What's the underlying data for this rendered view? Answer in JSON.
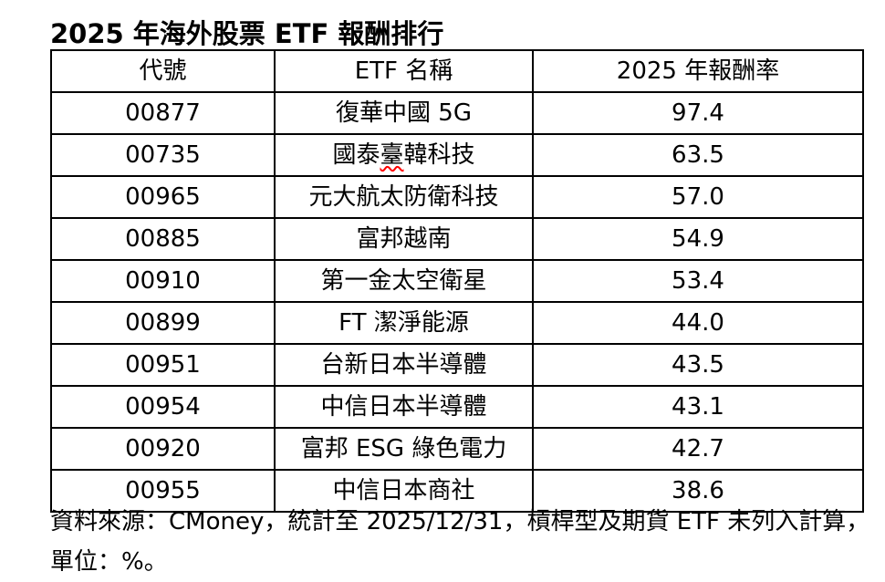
{
  "title": "2025 年海外股票 ETF 報酬排行",
  "table": {
    "columns": [
      "代號",
      "ETF 名稱",
      "2025 年報酬率"
    ],
    "rows": [
      {
        "code": "00877",
        "name_parts": [
          {
            "text": "復華中國 5G"
          }
        ],
        "return_rate": "97.4"
      },
      {
        "code": "00735",
        "name_parts": [
          {
            "text": "國泰"
          },
          {
            "text": "臺",
            "squiggle": true
          },
          {
            "text": "韓科技"
          }
        ],
        "return_rate": "63.5"
      },
      {
        "code": "00965",
        "name_parts": [
          {
            "text": "元大航太防衛科技"
          }
        ],
        "return_rate": "57.0"
      },
      {
        "code": "00885",
        "name_parts": [
          {
            "text": "富邦越南"
          }
        ],
        "return_rate": "54.9"
      },
      {
        "code": "00910",
        "name_parts": [
          {
            "text": "第一金太空衛星"
          }
        ],
        "return_rate": "53.4"
      },
      {
        "code": "00899",
        "name_parts": [
          {
            "text": "FT 潔淨能源"
          }
        ],
        "return_rate": "44.0"
      },
      {
        "code": "00951",
        "name_parts": [
          {
            "text": "台新日本半導體"
          }
        ],
        "return_rate": "43.5"
      },
      {
        "code": "00954",
        "name_parts": [
          {
            "text": "中信日本半導體"
          }
        ],
        "return_rate": "43.1"
      },
      {
        "code": "00920",
        "name_parts": [
          {
            "text": "富邦 ESG 綠色電力"
          }
        ],
        "return_rate": "42.7"
      },
      {
        "code": "00955",
        "name_parts": [
          {
            "text": "中信日本商社"
          }
        ],
        "return_rate": "38.6"
      }
    ]
  },
  "footer": {
    "line1": "資料來源：CMoney，統計至 2025/12/31，槓桿型及期貨 ETF 未列入計算，",
    "line2": "單位：%。"
  },
  "colors": {
    "text": "#000000",
    "border": "#000000",
    "spellcheck_squiggle": "#ff0000",
    "background": "#ffffff"
  }
}
